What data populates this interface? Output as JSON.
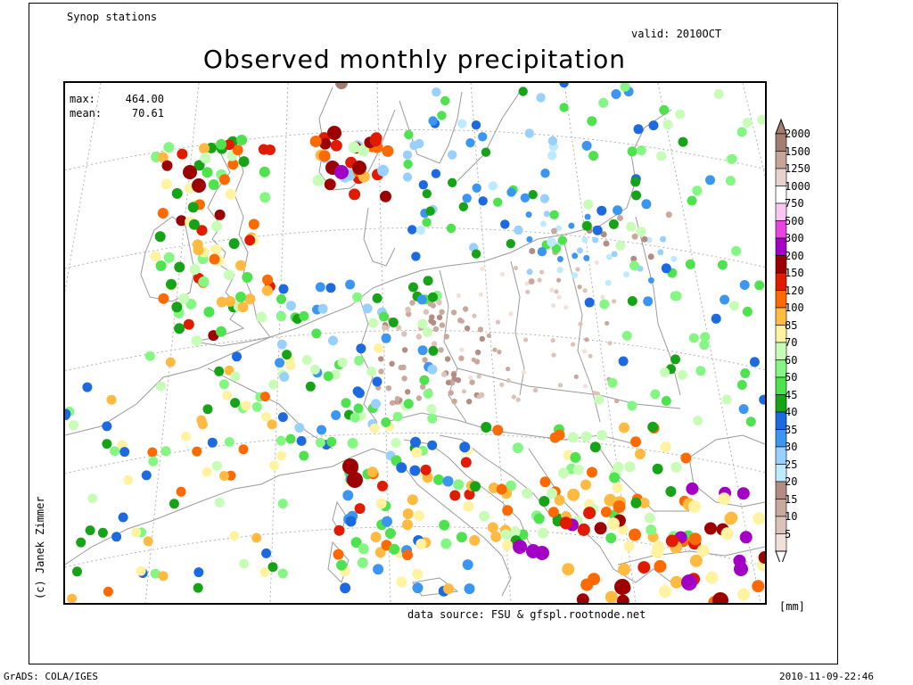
{
  "header": {
    "top_left": "Synop stations",
    "valid": "valid: 2010OCT",
    "title": "Observed monthly precipitation"
  },
  "stats": {
    "max_label": "max:",
    "max_value": "464.00",
    "mean_label": "mean:",
    "mean_value": "70.61"
  },
  "credit": "(c) Janek Zimmer",
  "data_source": "data source: FSU & gfspl.rootnode.net",
  "footer": {
    "left": "GrADS: COLA/IGES",
    "right": "2010-11-09-22:46"
  },
  "legend": {
    "unit": "[mm]",
    "levels": [
      "2000",
      "1500",
      "1250",
      "1000",
      "750",
      "500",
      "300",
      "200",
      "150",
      "120",
      "100",
      "85",
      "70",
      "60",
      "50",
      "45",
      "40",
      "35",
      "30",
      "25",
      "20",
      "15",
      "10",
      "5"
    ],
    "colors": [
      "#a47d72",
      "#c6a497",
      "#e8d2cd",
      "#ffffff",
      "#f9c6f3",
      "#e845e0",
      "#a200c5",
      "#9c0000",
      "#e11b00",
      "#ff6a00",
      "#ffba42",
      "#fff3a2",
      "#c7fdb6",
      "#84f783",
      "#4fe24f",
      "#17a317",
      "#1c69e0",
      "#3b96f2",
      "#98d0ff",
      "#bdeaff",
      "#b38d84",
      "#c9a99d",
      "#dcc3b9",
      "#f1e1da"
    ],
    "top_arrow_color": "#a47d72",
    "bottom_arrow_color": "#ffffff"
  },
  "map": {
    "coastline_color": "#9a9a9a",
    "grid_color": "#b0b0b0"
  }
}
